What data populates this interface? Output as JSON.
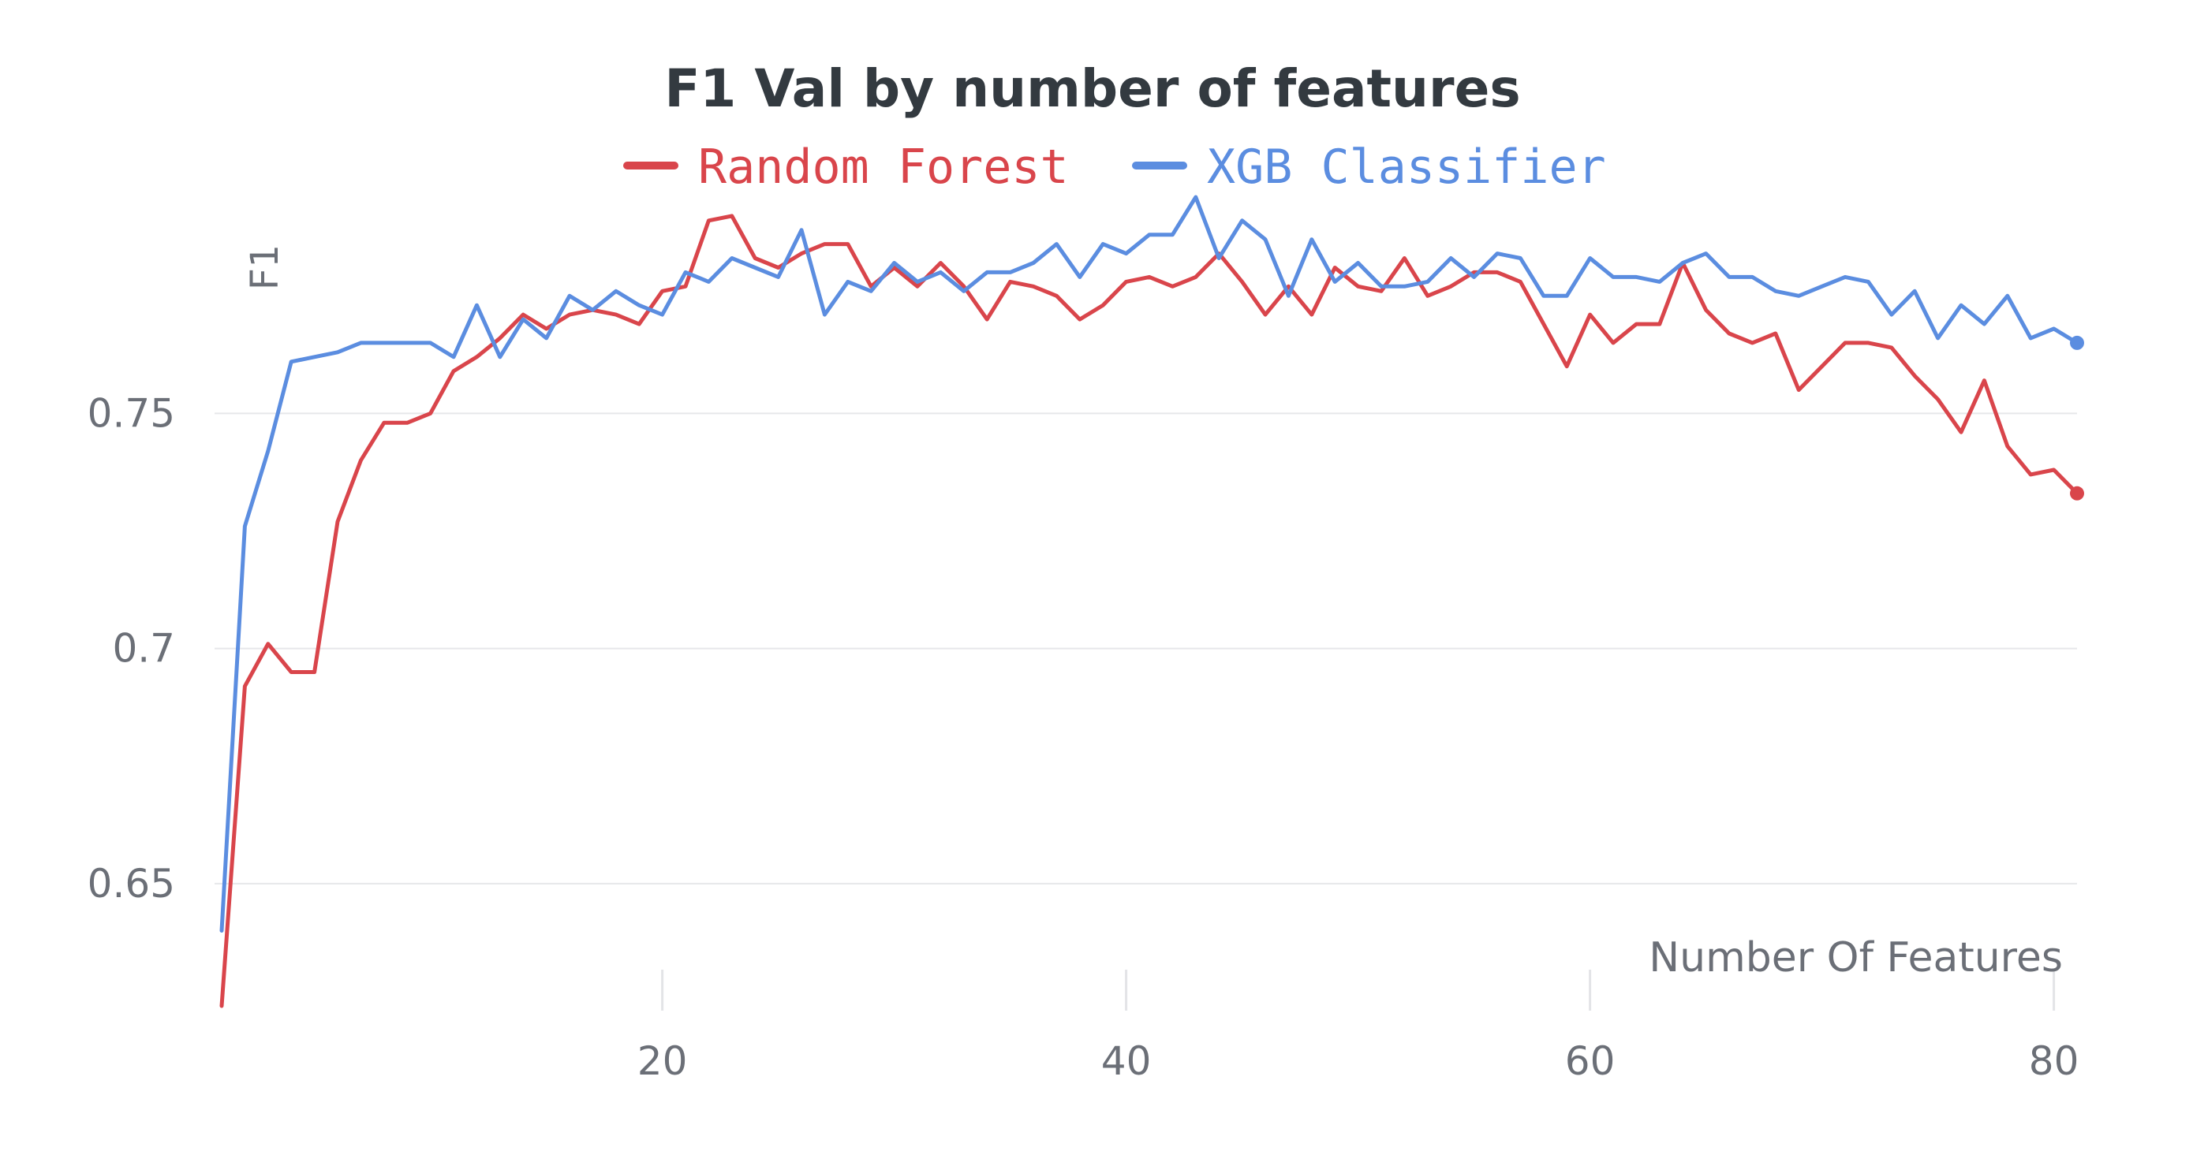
{
  "chart_data": {
    "type": "line",
    "title": "F1 Val by number of features",
    "xlabel": "Number Of Features",
    "ylabel": "F1",
    "xlim": [
      1,
      81
    ],
    "ylim": [
      0.625,
      0.796
    ],
    "x_ticks": [
      20,
      40,
      60,
      80
    ],
    "y_ticks": [
      0.65,
      0.7,
      0.75
    ],
    "y_tick_labels": [
      "0.65",
      "0.7",
      "0.75"
    ],
    "x_tick_labels": [
      "20",
      "40",
      "60",
      "80"
    ],
    "grid": "horizontal",
    "legend": "top-center",
    "series": [
      {
        "name": "Random Forest",
        "color": "#d9454b",
        "x": [
          1,
          2,
          3,
          4,
          5,
          6,
          7,
          8,
          9,
          10,
          11,
          12,
          13,
          14,
          15,
          16,
          17,
          18,
          19,
          20,
          21,
          22,
          23,
          24,
          25,
          26,
          27,
          28,
          29,
          30,
          31,
          32,
          33,
          34,
          35,
          36,
          37,
          38,
          39,
          40,
          41,
          42,
          43,
          44,
          45,
          46,
          47,
          48,
          49,
          50,
          51,
          52,
          53,
          54,
          55,
          56,
          57,
          58,
          59,
          60,
          61,
          62,
          63,
          64,
          65,
          66,
          67,
          68,
          69,
          70,
          71,
          72,
          73,
          74,
          75,
          76,
          77,
          78,
          79,
          80,
          81
        ],
        "values": [
          0.624,
          0.692,
          0.701,
          0.695,
          0.695,
          0.727,
          0.74,
          0.748,
          0.748,
          0.75,
          0.759,
          0.762,
          0.766,
          0.771,
          0.768,
          0.771,
          0.772,
          0.771,
          0.769,
          0.776,
          0.777,
          0.791,
          0.792,
          0.783,
          0.781,
          0.784,
          0.786,
          0.786,
          0.777,
          0.781,
          0.777,
          0.782,
          0.777,
          0.77,
          0.778,
          0.777,
          0.775,
          0.77,
          0.773,
          0.778,
          0.779,
          0.777,
          0.779,
          0.784,
          0.778,
          0.771,
          0.777,
          0.771,
          0.781,
          0.777,
          0.776,
          0.783,
          0.775,
          0.777,
          0.78,
          0.78,
          0.778,
          0.769,
          0.76,
          0.771,
          0.765,
          0.769,
          0.769,
          0.782,
          0.772,
          0.767,
          0.765,
          0.767,
          0.755,
          0.76,
          0.765,
          0.765,
          0.764,
          0.758,
          0.753,
          0.746,
          0.757,
          0.743,
          0.737,
          0.738,
          0.733
        ]
      },
      {
        "name": "XGB Classifier",
        "color": "#5b8de0",
        "x": [
          1,
          2,
          3,
          4,
          5,
          6,
          7,
          8,
          9,
          10,
          11,
          12,
          13,
          14,
          15,
          16,
          17,
          18,
          19,
          20,
          21,
          22,
          23,
          24,
          25,
          26,
          27,
          28,
          29,
          30,
          31,
          32,
          33,
          34,
          35,
          36,
          37,
          38,
          39,
          40,
          41,
          42,
          43,
          44,
          45,
          46,
          47,
          48,
          49,
          50,
          51,
          52,
          53,
          54,
          55,
          56,
          57,
          58,
          59,
          60,
          61,
          62,
          63,
          64,
          65,
          66,
          67,
          68,
          69,
          70,
          71,
          72,
          73,
          74,
          75,
          76,
          77,
          78,
          79,
          80,
          81
        ],
        "values": [
          0.64,
          0.726,
          0.742,
          0.761,
          0.762,
          0.763,
          0.765,
          0.765,
          0.765,
          0.765,
          0.762,
          0.773,
          0.762,
          0.77,
          0.766,
          0.775,
          0.772,
          0.776,
          0.773,
          0.771,
          0.78,
          0.778,
          0.783,
          0.781,
          0.779,
          0.789,
          0.771,
          0.778,
          0.776,
          0.782,
          0.778,
          0.78,
          0.776,
          0.78,
          0.78,
          0.782,
          0.786,
          0.779,
          0.786,
          0.784,
          0.788,
          0.788,
          0.796,
          0.783,
          0.791,
          0.787,
          0.775,
          0.787,
          0.778,
          0.782,
          0.777,
          0.777,
          0.778,
          0.783,
          0.779,
          0.784,
          0.783,
          0.775,
          0.775,
          0.783,
          0.779,
          0.779,
          0.778,
          0.782,
          0.784,
          0.779,
          0.779,
          0.776,
          0.775,
          0.777,
          0.779,
          0.778,
          0.771,
          0.776,
          0.766,
          0.773,
          0.769,
          0.775,
          0.766,
          0.768,
          0.765
        ]
      }
    ]
  }
}
